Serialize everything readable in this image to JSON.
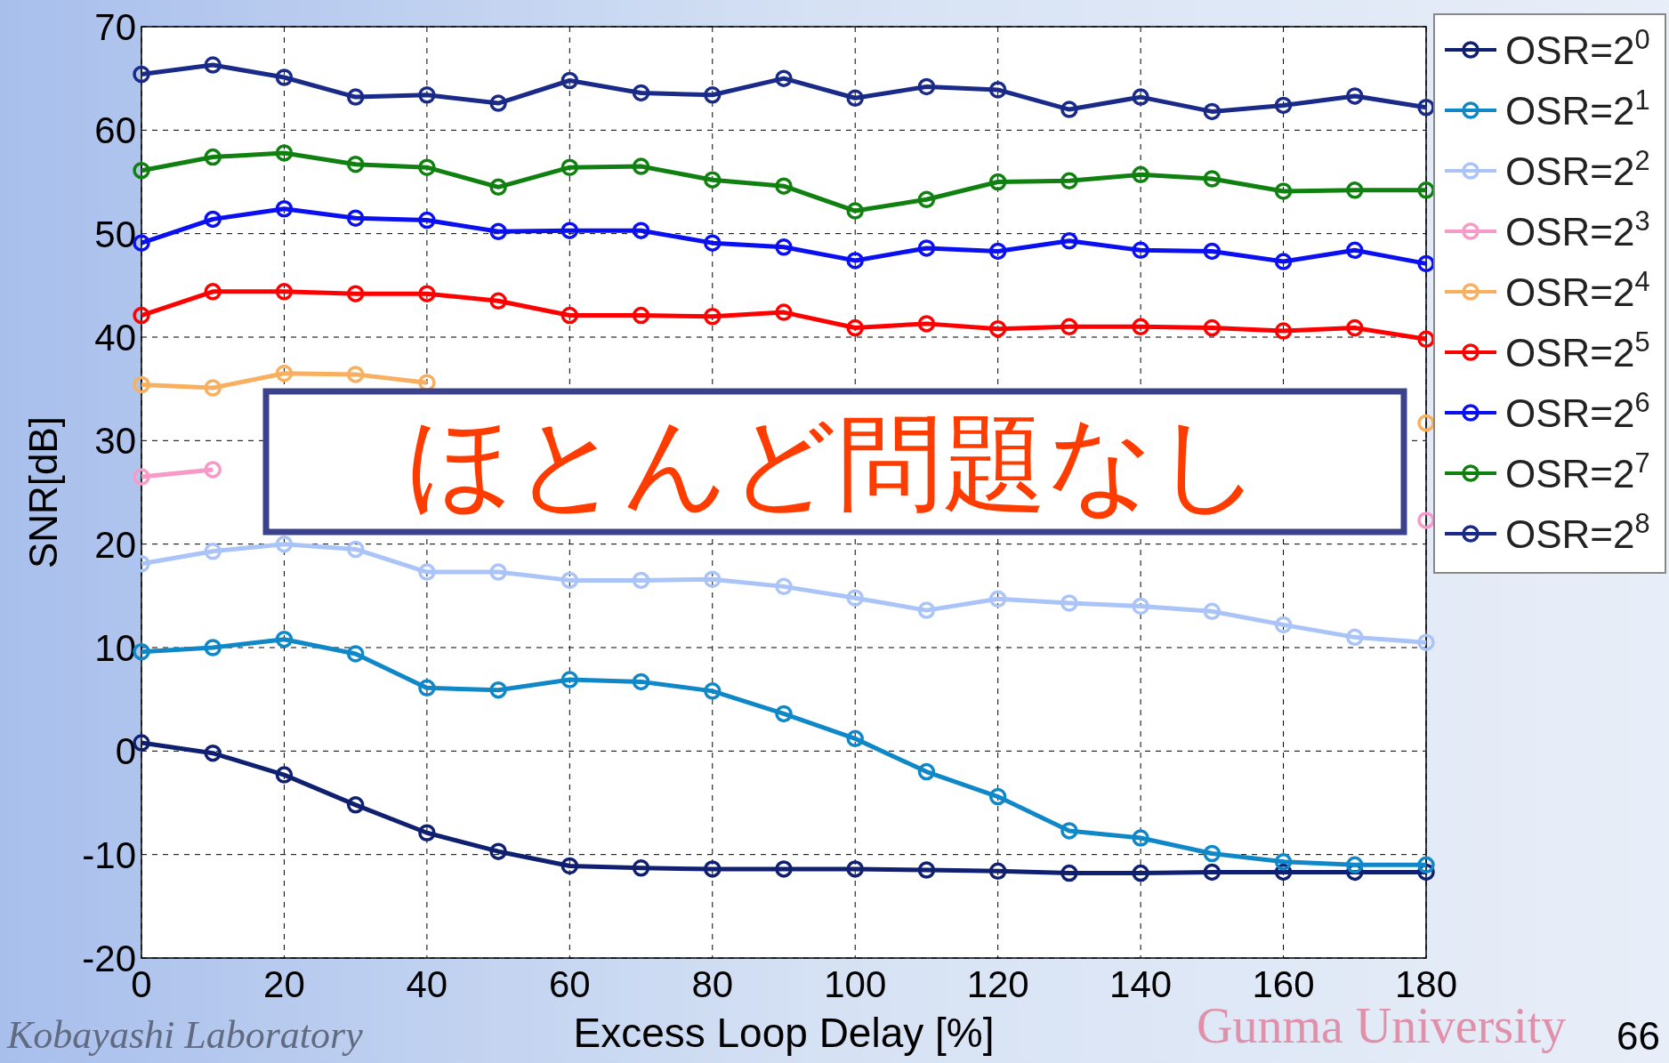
{
  "chart_data": {
    "type": "line",
    "xlabel": "Excess Loop Delay [%]",
    "ylabel": "SNR[dB]",
    "x": [
      0,
      10,
      20,
      30,
      40,
      50,
      60,
      70,
      80,
      90,
      100,
      110,
      120,
      130,
      140,
      150,
      160,
      170,
      180
    ],
    "xlim": [
      0,
      180
    ],
    "xticks": [
      0,
      20,
      40,
      60,
      80,
      100,
      120,
      140,
      160,
      180
    ],
    "ylim": [
      -20,
      70
    ],
    "yticks": [
      -20,
      -10,
      0,
      10,
      20,
      30,
      40,
      50,
      60,
      70
    ],
    "grid": true,
    "marker": "circle",
    "line_style": "solid",
    "legend": "top right",
    "annotations": [
      "ほとんど問題なし",
      "Kobayashi Laboratory",
      "Gunma University",
      "66"
    ],
    "series": [
      {
        "name": "OSR=2$^{0}$",
        "color": "#102070",
        "values": [
          0.8,
          -0.2,
          -2.3,
          -5.2,
          -7.9,
          -9.7,
          -11.1,
          -11.3,
          -11.4,
          -11.4,
          -11.4,
          -11.5,
          -11.6,
          -11.8,
          -11.8,
          -11.7,
          -11.7,
          -11.7,
          -11.7
        ]
      },
      {
        "name": "OSR=2$^{1}$",
        "color": "#1088c8",
        "values": [
          9.6,
          10.0,
          10.8,
          9.4,
          6.1,
          5.9,
          6.9,
          6.7,
          5.8,
          3.6,
          1.2,
          -2.0,
          -4.4,
          -7.7,
          -8.4,
          -9.9,
          -10.7,
          -11.0,
          -11.0
        ]
      },
      {
        "name": "OSR=2$^{2}$",
        "color": "#aac4f8",
        "values": [
          18.1,
          19.3,
          20.0,
          19.5,
          17.3,
          17.3,
          16.5,
          16.5,
          16.6,
          15.9,
          14.8,
          13.6,
          14.7,
          14.3,
          14.0,
          13.5,
          12.2,
          11.0,
          10.5
        ]
      },
      {
        "name": "OSR=2$^{3}$",
        "color": "#f79ac8",
        "values": [
          26.5,
          27.2,
          null,
          null,
          null,
          null,
          null,
          null,
          null,
          null,
          null,
          null,
          null,
          null,
          null,
          null,
          null,
          null,
          22.3
        ]
      },
      {
        "name": "OSR=2$^{4}$",
        "color": "#f8b060",
        "values": [
          35.4,
          35.1,
          36.5,
          36.4,
          35.6,
          null,
          null,
          null,
          null,
          null,
          null,
          null,
          null,
          null,
          null,
          null,
          null,
          null,
          31.7
        ]
      },
      {
        "name": "OSR=2$^{5}$",
        "color": "#ff0000",
        "values": [
          42.1,
          44.4,
          44.4,
          44.2,
          44.2,
          43.5,
          42.1,
          42.1,
          42.0,
          42.4,
          40.9,
          41.3,
          40.8,
          41.0,
          41.0,
          40.9,
          40.6,
          40.9,
          39.8
        ]
      },
      {
        "name": "OSR=2$^{6}$",
        "color": "#0a10f0",
        "values": [
          49.1,
          51.4,
          52.4,
          51.5,
          51.3,
          50.2,
          50.3,
          50.3,
          49.1,
          48.7,
          47.4,
          48.6,
          48.3,
          49.3,
          48.4,
          48.3,
          47.3,
          48.4,
          47.1
        ]
      },
      {
        "name": "OSR=2$^{7}$",
        "color": "#108010",
        "values": [
          56.1,
          57.4,
          57.8,
          56.7,
          56.4,
          54.5,
          56.4,
          56.5,
          55.2,
          54.6,
          52.2,
          53.3,
          55.0,
          55.1,
          55.7,
          55.3,
          54.1,
          54.2,
          54.2
        ]
      },
      {
        "name": "OSR=2$^{8}$",
        "color": "#1a2a88",
        "values": [
          65.4,
          66.3,
          65.1,
          63.2,
          63.4,
          62.6,
          64.8,
          63.6,
          63.4,
          65.0,
          63.1,
          64.2,
          63.9,
          62.0,
          63.2,
          61.8,
          62.4,
          63.3,
          62.2
        ]
      }
    ]
  }
}
